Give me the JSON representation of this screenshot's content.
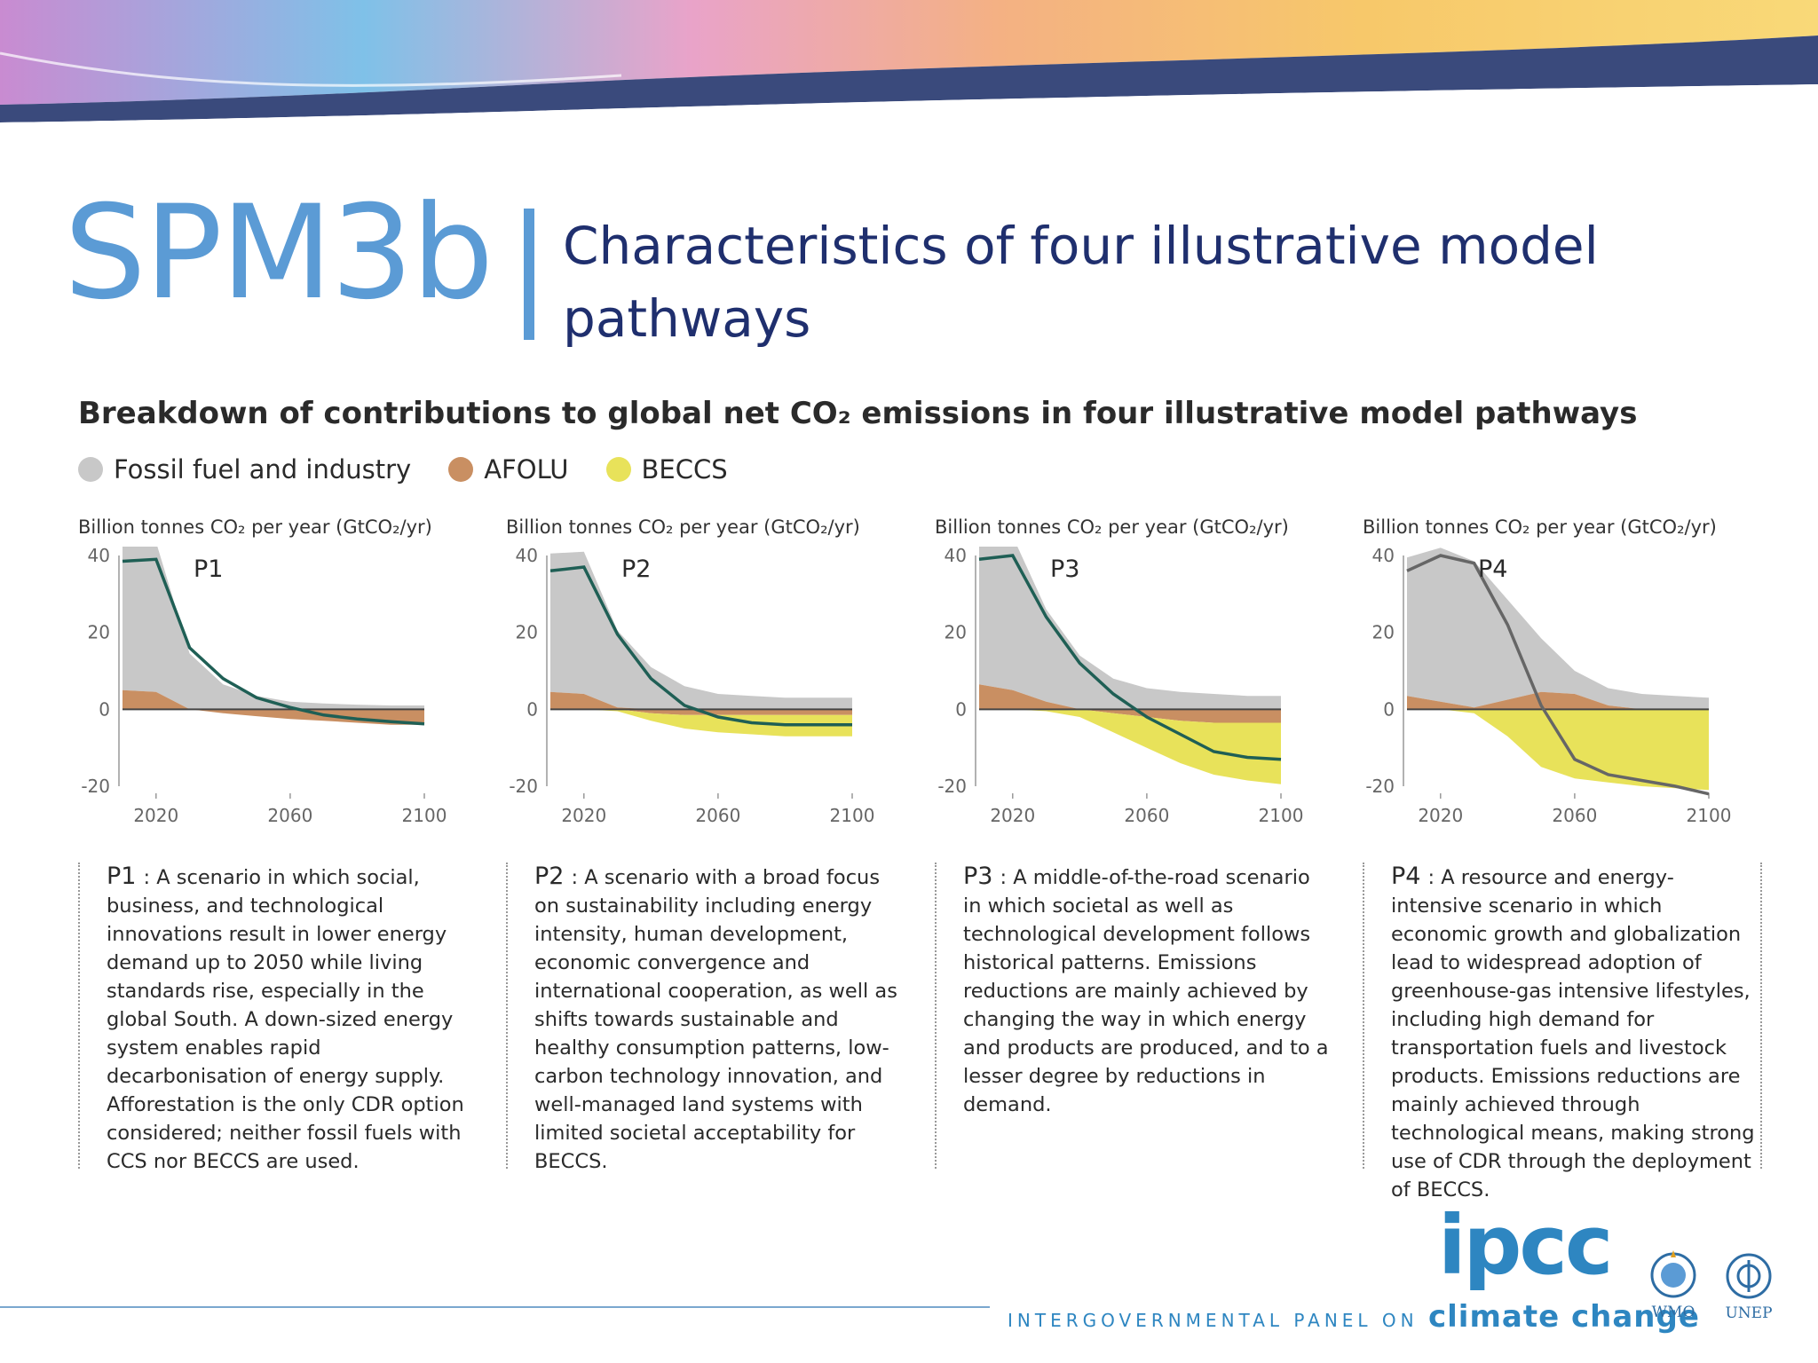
{
  "slide": {
    "code": "SPM3b",
    "title": "Characteristics of four illustrative model pathways"
  },
  "figure": {
    "title": "Breakdown of contributions to global net CO₂ emissions in four illustrative model pathways",
    "legend": [
      {
        "label": "Fossil fuel and industry",
        "color": "#c8c8c8"
      },
      {
        "label": "AFOLU",
        "color": "#c98f62"
      },
      {
        "label": "BECCS",
        "color": "#e8e25a"
      }
    ]
  },
  "chart_data": [
    {
      "type": "area",
      "name": "P1",
      "ylabel": "Billion tonnes CO₂ per year (GtCO₂/yr)",
      "ylim": [
        -20,
        40
      ],
      "yticks": [
        40,
        20,
        0,
        -20
      ],
      "xlim": [
        2010,
        2100
      ],
      "xticks": [
        2020,
        2060,
        2100
      ],
      "x": [
        2010,
        2020,
        2030,
        2040,
        2050,
        2060,
        2070,
        2080,
        2090,
        2100
      ],
      "series": [
        {
          "name": "Fossil fuel and industry",
          "values": [
            38.5,
            39,
            14.5,
            6.5,
            3.5,
            2,
            1.5,
            1.2,
            1,
            1
          ]
        },
        {
          "name": "AFOLU",
          "values": [
            5,
            4.5,
            0,
            -1,
            -1.8,
            -2.5,
            -3,
            -3.5,
            -4,
            -4
          ]
        },
        {
          "name": "BECCS",
          "values": [
            0,
            0,
            0,
            0,
            0,
            0,
            0,
            0,
            0,
            0
          ]
        }
      ],
      "net": [
        38.5,
        39,
        16,
        8,
        3,
        0.5,
        -1.5,
        -2.5,
        -3.2,
        -3.8
      ],
      "description": "A scenario in which social, business, and technological innovations result in lower energy demand up to 2050 while living standards rise, especially in the global South. A down-sized energy system enables rapid decarbonisation of energy supply. Afforestation is the only CDR option considered; neither fossil fuels with CCS nor BECCS are used."
    },
    {
      "type": "area",
      "name": "P2",
      "ylabel": "Billion tonnes CO₂ per year (GtCO₂/yr)",
      "ylim": [
        -20,
        40
      ],
      "yticks": [
        40,
        20,
        0,
        -20
      ],
      "xlim": [
        2010,
        2100
      ],
      "xticks": [
        2020,
        2060,
        2100
      ],
      "x": [
        2010,
        2020,
        2030,
        2040,
        2050,
        2060,
        2070,
        2080,
        2090,
        2100
      ],
      "series": [
        {
          "name": "Fossil fuel and industry",
          "values": [
            36,
            37,
            20,
            11,
            6,
            4,
            3.5,
            3,
            3,
            3
          ]
        },
        {
          "name": "AFOLU",
          "values": [
            4.5,
            4,
            0.5,
            -1,
            -1.5,
            -1.5,
            -1.5,
            -1.5,
            -1.5,
            -1.5
          ]
        },
        {
          "name": "BECCS",
          "values": [
            0,
            0,
            -0.5,
            -2,
            -3.5,
            -4.5,
            -5,
            -5.5,
            -5.5,
            -5.5
          ]
        }
      ],
      "net": [
        36,
        37,
        19.5,
        8,
        1,
        -2,
        -3.5,
        -4,
        -4,
        -4
      ],
      "description": "A scenario with a broad focus on sustainability including energy intensity, human development, economic convergence and international cooperation, as well as shifts towards sustainable and healthy consumption patterns, low-carbon technology innovation, and well-managed land systems with limited societal acceptability for BECCS."
    },
    {
      "type": "area",
      "name": "P3",
      "ylabel": "Billion tonnes CO₂ per year (GtCO₂/yr)",
      "ylim": [
        -20,
        40
      ],
      "yticks": [
        40,
        20,
        0,
        -20
      ],
      "xlim": [
        2010,
        2100
      ],
      "xticks": [
        2020,
        2060,
        2100
      ],
      "x": [
        2010,
        2020,
        2030,
        2040,
        2050,
        2060,
        2070,
        2080,
        2090,
        2100
      ],
      "series": [
        {
          "name": "Fossil fuel and industry",
          "values": [
            39,
            40,
            24,
            14,
            8,
            5.5,
            4.5,
            4,
            3.5,
            3.5
          ]
        },
        {
          "name": "AFOLU",
          "values": [
            6.5,
            5,
            2,
            0,
            -1,
            -2,
            -3,
            -3.5,
            -3.5,
            -3.5
          ]
        },
        {
          "name": "BECCS",
          "values": [
            0,
            0,
            -0.5,
            -2,
            -5,
            -8,
            -11,
            -13.5,
            -15,
            -16
          ]
        }
      ],
      "net": [
        39,
        40,
        24,
        12,
        4,
        -2,
        -6.5,
        -11,
        -12.5,
        -13
      ],
      "description": "A middle-of-the-road scenario in which societal as well as technological development follows historical patterns. Emissions reductions are mainly achieved by changing the way in which energy and products are produced, and to a lesser degree by reductions in demand."
    },
    {
      "type": "area",
      "name": "P4",
      "ylabel": "Billion tonnes CO₂ per year (GtCO₂/yr)",
      "ylim": [
        -20,
        40
      ],
      "yticks": [
        40,
        20,
        0,
        -20
      ],
      "xlim": [
        2010,
        2100
      ],
      "xticks": [
        2020,
        2060,
        2100
      ],
      "x": [
        2010,
        2020,
        2030,
        2040,
        2050,
        2060,
        2070,
        2080,
        2090,
        2100
      ],
      "series": [
        {
          "name": "Fossil fuel and industry",
          "values": [
            36,
            40,
            38,
            26,
            14,
            6,
            4.5,
            4,
            3.5,
            3
          ]
        },
        {
          "name": "AFOLU",
          "values": [
            3.5,
            2,
            0.5,
            2.5,
            4.5,
            4,
            1,
            0,
            0,
            0
          ]
        },
        {
          "name": "BECCS",
          "values": [
            0,
            0,
            -1,
            -7,
            -15,
            -18,
            -19,
            -20,
            -20.5,
            -21
          ]
        }
      ],
      "net": [
        36,
        40,
        38,
        22,
        1,
        -13,
        -17,
        -18.5,
        -20,
        -22
      ],
      "description": "A resource and energy-intensive scenario in which economic growth and globalization lead to widespread adoption of greenhouse-gas intensive lifestyles, including high demand for transportation fuels and livestock products. Emissions reductions are mainly achieved through technological means, making strong use of CDR through the deployment of BECCS."
    }
  ],
  "footer": {
    "logo": "ipcc",
    "tagline": "INTERGOVERNMENTAL PANEL ON",
    "tagline_accent": "climate change",
    "org1": "WMO",
    "org2": "UNEP"
  }
}
